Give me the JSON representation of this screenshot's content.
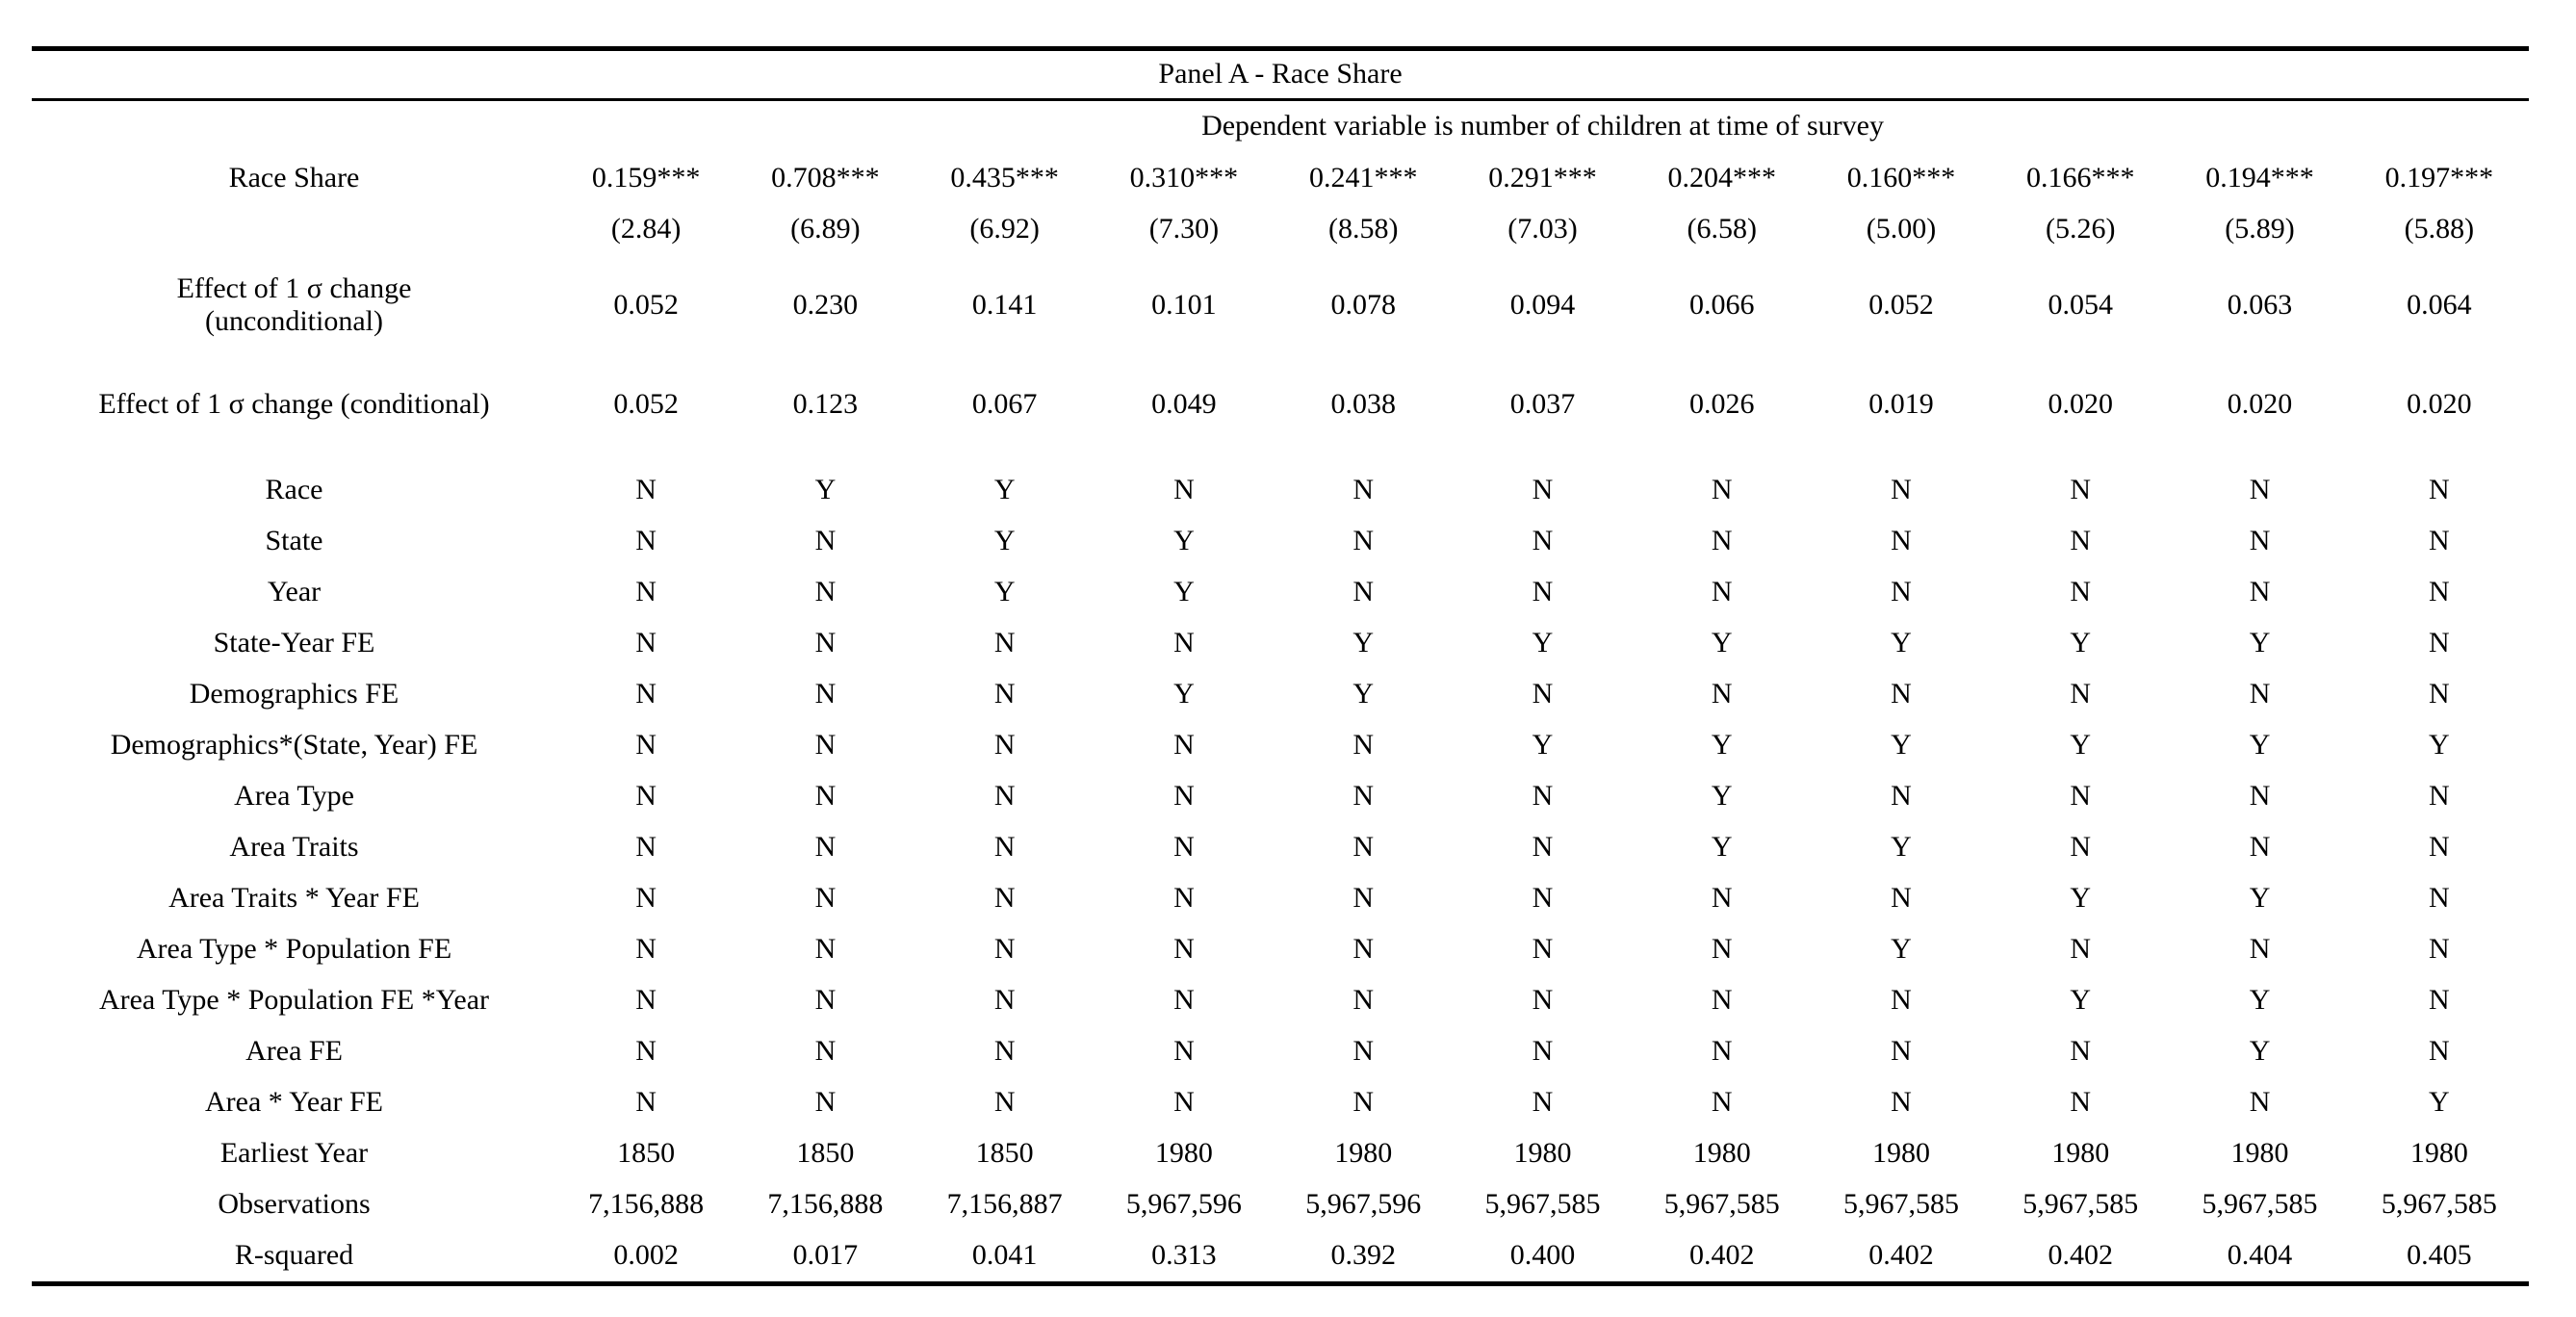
{
  "table": {
    "panel_title": "Panel A - Race Share",
    "dep_var_note": "Dependent variable is number of children at time of survey",
    "rows": [
      {
        "type": "coef",
        "label": "Race Share",
        "values": [
          "0.159***",
          "0.708***",
          "0.435***",
          "0.310***",
          "0.241***",
          "0.291***",
          "0.204***",
          "0.160***",
          "0.166***",
          "0.194***",
          "0.197***"
        ]
      },
      {
        "type": "tstat",
        "label": "",
        "values": [
          "(2.84)",
          "(6.89)",
          "(6.92)",
          "(7.30)",
          "(8.58)",
          "(7.03)",
          "(6.58)",
          "(5.00)",
          "(5.26)",
          "(5.89)",
          "(5.88)"
        ]
      },
      {
        "type": "effect-tall",
        "label": "Effect of 1 σ change",
        "label2": "(unconditional)",
        "values": [
          "0.052",
          "0.230",
          "0.141",
          "0.101",
          "0.078",
          "0.094",
          "0.066",
          "0.052",
          "0.054",
          "0.063",
          "0.064"
        ]
      },
      {
        "type": "spacer-sm"
      },
      {
        "type": "effect",
        "label": "Effect of 1 σ change (conditional)",
        "values": [
          "0.052",
          "0.123",
          "0.067",
          "0.049",
          "0.038",
          "0.037",
          "0.026",
          "0.019",
          "0.020",
          "0.020",
          "0.020"
        ]
      },
      {
        "type": "spacer-lg"
      },
      {
        "type": "fe",
        "label": "Race",
        "values": [
          "N",
          "Y",
          "Y",
          "N",
          "N",
          "N",
          "N",
          "N",
          "N",
          "N",
          "N"
        ]
      },
      {
        "type": "fe",
        "label": "State",
        "values": [
          "N",
          "N",
          "Y",
          "Y",
          "N",
          "N",
          "N",
          "N",
          "N",
          "N",
          "N"
        ]
      },
      {
        "type": "fe",
        "label": "Year",
        "values": [
          "N",
          "N",
          "Y",
          "Y",
          "N",
          "N",
          "N",
          "N",
          "N",
          "N",
          "N"
        ]
      },
      {
        "type": "fe",
        "label": "State-Year FE",
        "values": [
          "N",
          "N",
          "N",
          "N",
          "Y",
          "Y",
          "Y",
          "Y",
          "Y",
          "Y",
          "N"
        ]
      },
      {
        "type": "fe",
        "label": "Demographics FE",
        "values": [
          "N",
          "N",
          "N",
          "Y",
          "Y",
          "N",
          "N",
          "N",
          "N",
          "N",
          "N"
        ]
      },
      {
        "type": "fe",
        "label": "Demographics*(State, Year) FE",
        "values": [
          "N",
          "N",
          "N",
          "N",
          "N",
          "Y",
          "Y",
          "Y",
          "Y",
          "Y",
          "Y"
        ]
      },
      {
        "type": "fe",
        "label": "Area Type",
        "values": [
          "N",
          "N",
          "N",
          "N",
          "N",
          "N",
          "Y",
          "N",
          "N",
          "N",
          "N"
        ]
      },
      {
        "type": "fe",
        "label": "Area Traits",
        "values": [
          "N",
          "N",
          "N",
          "N",
          "N",
          "N",
          "Y",
          "Y",
          "N",
          "N",
          "N"
        ]
      },
      {
        "type": "fe",
        "label": "Area Traits * Year FE",
        "values": [
          "N",
          "N",
          "N",
          "N",
          "N",
          "N",
          "N",
          "N",
          "Y",
          "Y",
          "N"
        ]
      },
      {
        "type": "fe",
        "label": "Area Type * Population FE",
        "values": [
          "N",
          "N",
          "N",
          "N",
          "N",
          "N",
          "N",
          "Y",
          "N",
          "N",
          "N"
        ]
      },
      {
        "type": "fe",
        "label": "Area Type * Population FE *Year",
        "values": [
          "N",
          "N",
          "N",
          "N",
          "N",
          "N",
          "N",
          "N",
          "Y",
          "Y",
          "N"
        ]
      },
      {
        "type": "fe",
        "label": "Area FE",
        "values": [
          "N",
          "N",
          "N",
          "N",
          "N",
          "N",
          "N",
          "N",
          "N",
          "Y",
          "N"
        ]
      },
      {
        "type": "fe",
        "label": "Area * Year FE",
        "values": [
          "N",
          "N",
          "N",
          "N",
          "N",
          "N",
          "N",
          "N",
          "N",
          "N",
          "Y"
        ]
      },
      {
        "type": "stat",
        "label": "Earliest Year",
        "values": [
          "1850",
          "1850",
          "1850",
          "1980",
          "1980",
          "1980",
          "1980",
          "1980",
          "1980",
          "1980",
          "1980"
        ]
      },
      {
        "type": "stat",
        "label": "Observations",
        "values": [
          "7,156,888",
          "7,156,888",
          "7,156,887",
          "5,967,596",
          "5,967,596",
          "5,967,585",
          "5,967,585",
          "5,967,585",
          "5,967,585",
          "5,967,585",
          "5,967,585"
        ]
      },
      {
        "type": "stat",
        "label": "R-squared",
        "values": [
          "0.002",
          "0.017",
          "0.041",
          "0.313",
          "0.392",
          "0.400",
          "0.402",
          "0.402",
          "0.402",
          "0.404",
          "0.405"
        ]
      }
    ]
  }
}
